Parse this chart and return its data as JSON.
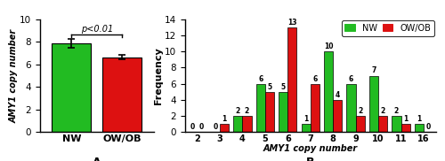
{
  "panel_A": {
    "categories": [
      "NW",
      "OW/OB"
    ],
    "values": [
      7.85,
      6.65
    ],
    "errors": [
      0.38,
      0.22
    ],
    "bar_colors": [
      "#22bb22",
      "#dd1111"
    ],
    "ylabel": "AMY1 copy number",
    "ylim": [
      0,
      10
    ],
    "yticks": [
      0,
      2,
      4,
      6,
      8,
      10
    ],
    "pvalue_text": "p<0.01",
    "label": "A"
  },
  "panel_B": {
    "copy_numbers": [
      2,
      3,
      4,
      5,
      6,
      7,
      8,
      9,
      10,
      11,
      16
    ],
    "NW": [
      0,
      0,
      2,
      6,
      5,
      1,
      10,
      6,
      7,
      2,
      1
    ],
    "OWOB": [
      0,
      1,
      2,
      5,
      13,
      6,
      4,
      2,
      2,
      1,
      0
    ],
    "bar_colors": {
      "NW": "#22bb22",
      "OWOB": "#dd1111"
    },
    "xlabel": "AMY1 copy number",
    "ylabel": "Frequency",
    "ylim": [
      0,
      14
    ],
    "yticks": [
      0,
      2,
      4,
      6,
      8,
      10,
      12,
      14
    ],
    "legend_labels": [
      "NW",
      "OW/OB"
    ],
    "label": "B"
  },
  "background_color": "#ffffff"
}
